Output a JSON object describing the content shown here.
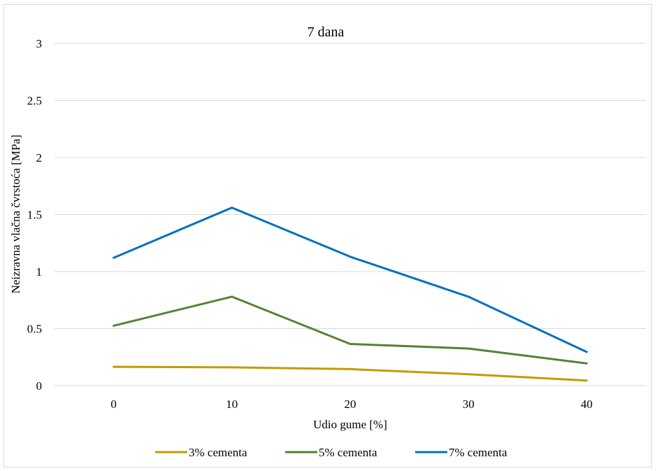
{
  "chart_data": {
    "type": "line",
    "title": "7 dana",
    "xlabel": "Udio gume [%]",
    "ylabel": "Neizravna vlačna čvrstoća [MPa]",
    "categories": [
      "0",
      "10",
      "20",
      "30",
      "40"
    ],
    "ylim": [
      0,
      3
    ],
    "yticks": [
      "0",
      "0.5",
      "1",
      "1.5",
      "2",
      "2.5",
      "3"
    ],
    "grid": true,
    "legend_position": "bottom",
    "series": [
      {
        "name": "3% cementa",
        "color": "#c49a00",
        "values": [
          0.165,
          0.16,
          0.145,
          0.1,
          0.045
        ]
      },
      {
        "name": "5% cementa",
        "color": "#548235",
        "values": [
          0.525,
          0.78,
          0.365,
          0.325,
          0.195
        ]
      },
      {
        "name": "7% cementa",
        "color": "#0070c0",
        "values": [
          1.12,
          1.56,
          1.13,
          0.78,
          0.295
        ]
      }
    ]
  }
}
